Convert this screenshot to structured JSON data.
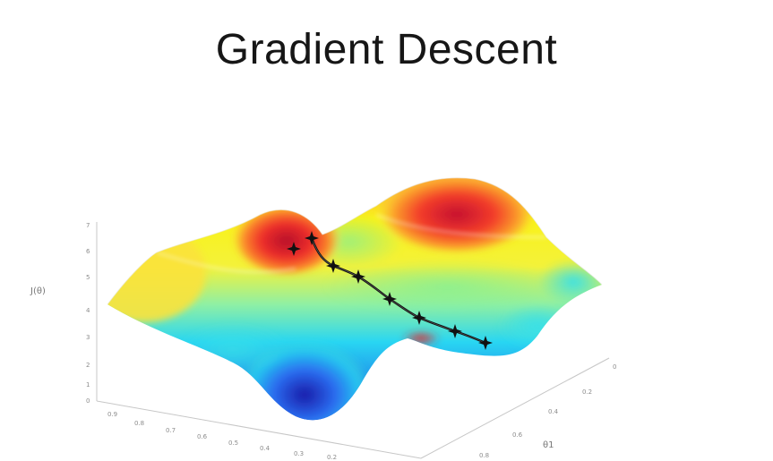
{
  "slide": {
    "title": "Gradient Descent"
  },
  "plot": {
    "z_axis_label": "J(θ)",
    "theta1_axis_label": "θ1",
    "z_ticks": [
      "7",
      "6",
      "5",
      "4",
      "3",
      "2",
      "1",
      "0"
    ],
    "theta0_ticks": [
      "0.9",
      "0.8",
      "0.7",
      "0.6",
      "0.5",
      "0.4",
      "0.3",
      "0.2"
    ],
    "theta1_ticks": [
      "0",
      "0.2",
      "0.4",
      "0.6",
      "0.8"
    ],
    "surface_colormap": [
      "#1a1aa8",
      "#1f6fe8",
      "#22c8f0",
      "#43e6c6",
      "#bff23a",
      "#f7f21c",
      "#fbb31e",
      "#f24a2a",
      "#c7112b"
    ],
    "path_color": "#111111",
    "marker_symbol": "✦"
  }
}
